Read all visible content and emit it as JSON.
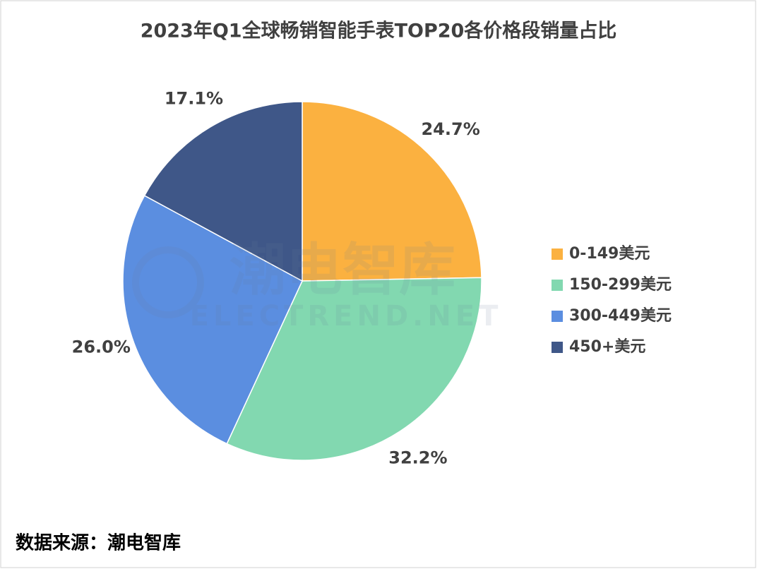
{
  "chart_data": {
    "type": "pie",
    "title": "2023年Q1全球畅销智能手表TOP20各价格段销量占比",
    "categories": [
      "0-149美元",
      "150-299美元",
      "300-449美元",
      "450+美元"
    ],
    "values": [
      24.7,
      32.2,
      26.0,
      17.1
    ],
    "value_labels": [
      "24.7%",
      "32.2%",
      "26.0%",
      "17.1%"
    ],
    "colors": [
      "#FBB140",
      "#82D8B0",
      "#5B8EE0",
      "#3F5788"
    ],
    "legend": "right",
    "watermark": [
      "潮电智库",
      "ELECTREND.NET"
    ],
    "source": "数据来源：潮电智库"
  }
}
